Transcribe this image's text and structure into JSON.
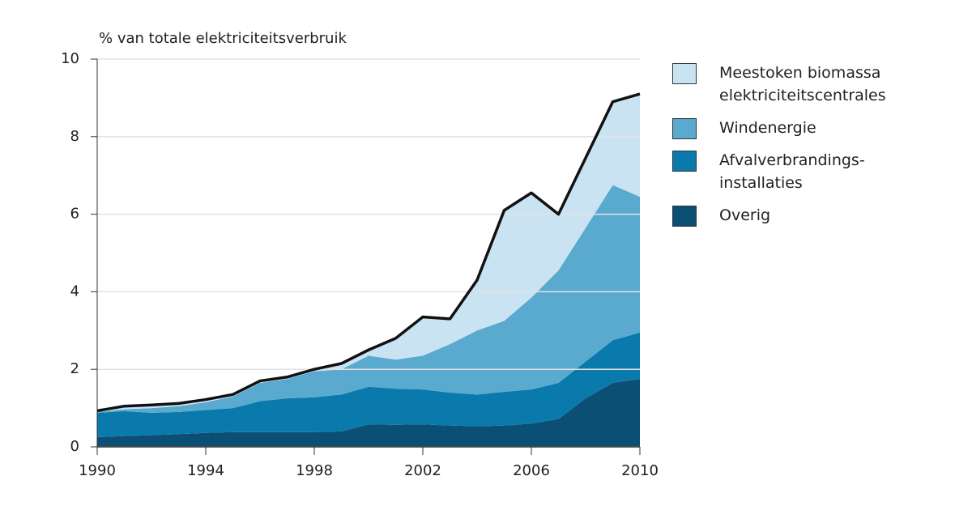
{
  "chart_data": {
    "type": "stacked_area",
    "y_label": "% van totale elektriciteitsverbruik",
    "x": [
      1990,
      1991,
      1992,
      1993,
      1994,
      1995,
      1996,
      1997,
      1998,
      1999,
      2000,
      2001,
      2002,
      2003,
      2004,
      2005,
      2006,
      2007,
      2008,
      2009,
      2010
    ],
    "xlim": [
      1990,
      2010
    ],
    "xticks": [
      1990,
      1994,
      1998,
      2002,
      2006,
      2010
    ],
    "ylim": [
      0,
      10
    ],
    "yticks": [
      0,
      2,
      4,
      6,
      8,
      10
    ],
    "grid": true,
    "series": [
      {
        "name": "Overig",
        "color": "#0b4f74",
        "values": [
          0.25,
          0.28,
          0.3,
          0.33,
          0.36,
          0.38,
          0.38,
          0.38,
          0.38,
          0.4,
          0.58,
          0.57,
          0.58,
          0.55,
          0.53,
          0.55,
          0.6,
          0.72,
          1.25,
          1.65,
          1.75
        ]
      },
      {
        "name": "Afvalverbrandings-installaties",
        "color": "#0a7aad",
        "values": [
          0.63,
          0.64,
          0.58,
          0.57,
          0.59,
          0.62,
          0.8,
          0.87,
          0.9,
          0.95,
          0.97,
          0.93,
          0.9,
          0.85,
          0.82,
          0.87,
          0.88,
          0.93,
          0.95,
          1.1,
          1.2
        ]
      },
      {
        "name": "Windenergie",
        "color": "#5aaacf",
        "values": [
          0.02,
          0.05,
          0.12,
          0.15,
          0.2,
          0.3,
          0.47,
          0.5,
          0.67,
          0.65,
          0.8,
          0.75,
          0.87,
          1.25,
          1.65,
          1.83,
          2.37,
          2.9,
          3.45,
          4.0,
          3.5
        ]
      },
      {
        "name": "Meestoken biomassa elektriciteitscentrales",
        "color": "#c9e3f2",
        "values": [
          0.03,
          0.08,
          0.08,
          0.07,
          0.07,
          0.05,
          0.05,
          0.05,
          0.05,
          0.15,
          0.15,
          0.55,
          1.0,
          0.65,
          1.3,
          2.85,
          2.7,
          1.45,
          1.8,
          2.15,
          2.65
        ]
      }
    ]
  }
}
